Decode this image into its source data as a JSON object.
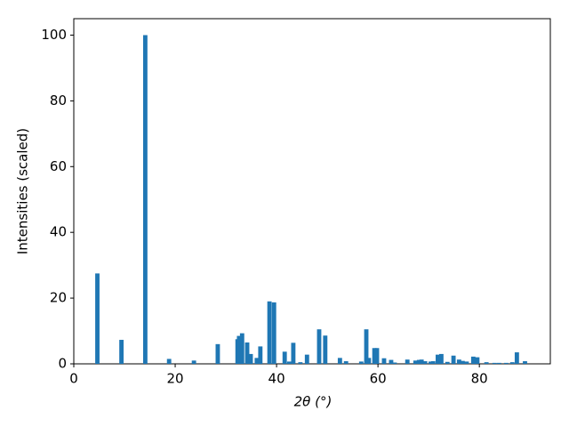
{
  "chart_data": {
    "type": "bar",
    "xlabel": "2θ (°)",
    "ylabel": "Intensities (scaled)",
    "x": [
      4.65,
      9.4,
      14.1,
      18.8,
      23.7,
      28.4,
      32.3,
      32.6,
      33.2,
      34.2,
      34.9,
      36.1,
      36.8,
      38.6,
      39.5,
      41.6,
      42.5,
      43.3,
      44.7,
      46.0,
      48.4,
      49.6,
      52.5,
      53.7,
      56.7,
      57.7,
      58.2,
      59.3,
      59.8,
      61.2,
      62.6,
      63.3,
      65.8,
      67.4,
      68.1,
      68.6,
      69.3,
      70.4,
      70.9,
      71.8,
      72.5,
      73.7,
      74.9,
      76.0,
      76.7,
      77.5,
      78.8,
      79.6,
      81.4,
      83.0,
      83.9,
      85.3,
      86.5,
      87.4,
      89.0
    ],
    "values": [
      27.5,
      7.3,
      100,
      1.5,
      1.0,
      6.0,
      7.5,
      8.5,
      9.3,
      6.5,
      3.0,
      1.8,
      5.3,
      19.0,
      18.7,
      3.7,
      0.7,
      6.4,
      0.5,
      2.8,
      10.5,
      8.6,
      1.8,
      0.8,
      0.7,
      10.5,
      1.8,
      4.8,
      4.8,
      1.7,
      1.2,
      0.4,
      1.3,
      1.0,
      1.2,
      1.3,
      0.8,
      0.7,
      0.8,
      2.8,
      3.0,
      0.6,
      2.5,
      1.3,
      0.9,
      0.7,
      2.2,
      2.0,
      0.5,
      0.3,
      0.3,
      0.3,
      0.5,
      3.5,
      0.8
    ],
    "color": "#1f77b4",
    "xlim": [
      0,
      94
    ],
    "xticks": [
      0,
      20,
      40,
      60,
      80
    ],
    "ylim": [
      0,
      105
    ],
    "yticks": [
      0,
      20,
      40,
      60,
      80,
      100
    ],
    "grid": false
  }
}
